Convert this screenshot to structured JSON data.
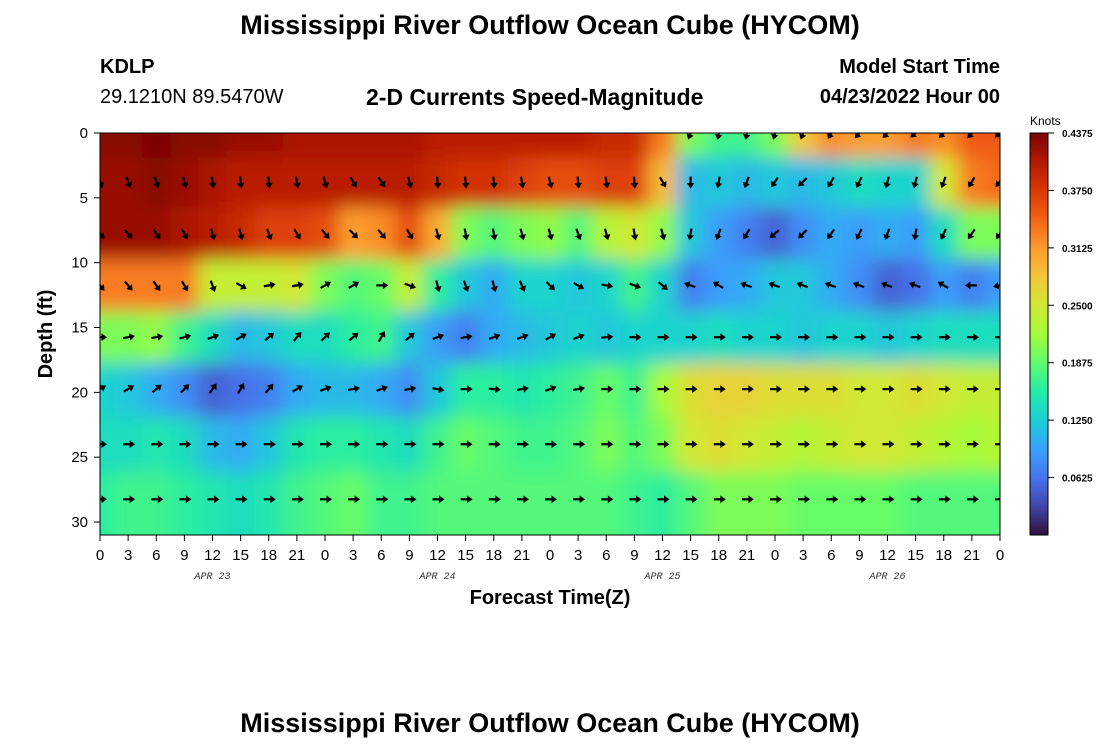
{
  "page": {
    "title_top": "Mississippi River Outflow Ocean Cube (HYCOM)",
    "title_bottom": "Mississippi River Outflow Ocean Cube (HYCOM)",
    "station": "KDLP",
    "coordinates": "29.1210N  89.5470W",
    "subtitle": "2-D Currents Speed-Magnitude",
    "model_start_label": "Model Start Time",
    "model_start_value": "04/23/2022 Hour 00"
  },
  "chart_data": {
    "type": "heatmap",
    "xlabel": "Forecast Time(Z)",
    "ylabel": "Depth (ft)",
    "x_tick_labels": [
      "0",
      "3",
      "6",
      "9",
      "12",
      "15",
      "18",
      "21",
      "0",
      "3",
      "6",
      "9",
      "12",
      "15",
      "18",
      "21",
      "0",
      "3",
      "6",
      "9",
      "12",
      "15",
      "18",
      "21",
      "0",
      "3",
      "6",
      "9",
      "12",
      "15",
      "18",
      "21",
      "0"
    ],
    "x_date_labels": [
      "APR 23",
      "APR 24",
      "APR 25",
      "APR 26"
    ],
    "x_date_positions_hours": [
      12,
      36,
      60,
      84
    ],
    "x_range_hours": [
      0,
      96
    ],
    "y_ticks": [
      0,
      5,
      10,
      15,
      20,
      25,
      30
    ],
    "y_range_ft": [
      0,
      31
    ],
    "colorbar": {
      "unit": "Knots",
      "min": 0.0,
      "max": 0.4375,
      "tick_values": [
        0.0625,
        0.125,
        0.1875,
        0.25,
        0.3125,
        0.375,
        0.4375
      ],
      "tick_labels": [
        "0.0625",
        "0.1250",
        "0.1875",
        "0.2500",
        "0.3125",
        "0.3750",
        "0.4375"
      ],
      "colormap": [
        "#30123b",
        "#4145ab",
        "#4675ed",
        "#39a2fc",
        "#1bcfd4",
        "#24eca6",
        "#61fc6c",
        "#a4fc3b",
        "#d1e834",
        "#f3c63a",
        "#fe9b2d",
        "#f36315",
        "#d93806",
        "#b11901",
        "#7a0402"
      ]
    },
    "rows_depth_ft": [
      0,
      3.75,
      7.75,
      11.75,
      15.75,
      19.75,
      24,
      28.25
    ],
    "cols_hours": [
      0,
      3,
      6,
      9,
      12,
      15,
      18,
      21,
      24,
      27,
      30,
      33,
      36,
      39,
      42,
      45,
      48,
      51,
      54,
      57,
      60,
      63,
      66,
      69,
      72,
      75,
      78,
      81,
      84,
      87,
      90,
      93,
      96
    ],
    "speed_knots": [
      [
        0.43,
        0.43,
        0.44,
        0.43,
        0.43,
        0.42,
        0.42,
        0.41,
        0.41,
        0.41,
        0.41,
        0.41,
        0.4,
        0.4,
        0.4,
        0.4,
        0.4,
        0.4,
        0.39,
        0.39,
        0.33,
        0.2,
        0.17,
        0.17,
        0.2,
        0.28,
        0.32,
        0.31,
        0.31,
        0.33,
        0.32,
        0.35,
        0.35
      ],
      [
        0.42,
        0.42,
        0.43,
        0.42,
        0.41,
        0.4,
        0.4,
        0.4,
        0.4,
        0.4,
        0.4,
        0.4,
        0.39,
        0.38,
        0.38,
        0.37,
        0.36,
        0.36,
        0.37,
        0.37,
        0.29,
        0.11,
        0.12,
        0.11,
        0.12,
        0.11,
        0.12,
        0.14,
        0.13,
        0.13,
        0.25,
        0.33,
        0.34
      ],
      [
        0.42,
        0.42,
        0.42,
        0.41,
        0.4,
        0.39,
        0.37,
        0.37,
        0.36,
        0.31,
        0.32,
        0.36,
        0.3,
        0.2,
        0.18,
        0.2,
        0.21,
        0.18,
        0.23,
        0.25,
        0.21,
        0.12,
        0.09,
        0.07,
        0.05,
        0.08,
        0.1,
        0.09,
        0.1,
        0.09,
        0.14,
        0.2,
        0.2
      ],
      [
        0.33,
        0.33,
        0.33,
        0.33,
        0.24,
        0.24,
        0.24,
        0.25,
        0.2,
        0.18,
        0.19,
        0.24,
        0.16,
        0.12,
        0.1,
        0.13,
        0.13,
        0.12,
        0.13,
        0.17,
        0.13,
        0.07,
        0.09,
        0.1,
        0.12,
        0.12,
        0.1,
        0.08,
        0.05,
        0.06,
        0.09,
        0.07,
        0.09
      ],
      [
        0.2,
        0.2,
        0.21,
        0.17,
        0.14,
        0.11,
        0.12,
        0.14,
        0.14,
        0.16,
        0.17,
        0.12,
        0.09,
        0.07,
        0.1,
        0.11,
        0.12,
        0.13,
        0.12,
        0.13,
        0.13,
        0.13,
        0.14,
        0.13,
        0.13,
        0.12,
        0.13,
        0.13,
        0.12,
        0.13,
        0.14,
        0.14,
        0.14
      ],
      [
        0.13,
        0.12,
        0.1,
        0.08,
        0.05,
        0.06,
        0.07,
        0.1,
        0.11,
        0.11,
        0.1,
        0.08,
        0.12,
        0.16,
        0.16,
        0.15,
        0.16,
        0.17,
        0.19,
        0.17,
        0.22,
        0.26,
        0.27,
        0.27,
        0.26,
        0.26,
        0.26,
        0.25,
        0.25,
        0.26,
        0.25,
        0.24,
        0.24
      ],
      [
        0.14,
        0.14,
        0.15,
        0.14,
        0.11,
        0.1,
        0.12,
        0.15,
        0.16,
        0.16,
        0.15,
        0.14,
        0.17,
        0.19,
        0.18,
        0.17,
        0.17,
        0.18,
        0.2,
        0.18,
        0.2,
        0.25,
        0.26,
        0.25,
        0.24,
        0.23,
        0.24,
        0.25,
        0.25,
        0.24,
        0.23,
        0.22,
        0.23
      ],
      [
        0.16,
        0.17,
        0.17,
        0.16,
        0.15,
        0.14,
        0.15,
        0.17,
        0.18,
        0.19,
        0.17,
        0.17,
        0.18,
        0.18,
        0.18,
        0.18,
        0.18,
        0.18,
        0.18,
        0.17,
        0.16,
        0.18,
        0.2,
        0.2,
        0.2,
        0.19,
        0.19,
        0.19,
        0.19,
        0.18,
        0.18,
        0.18,
        0.18
      ]
    ],
    "arrow_direction_deg": [
      [
        null,
        null,
        null,
        null,
        null,
        null,
        null,
        null,
        null,
        null,
        null,
        null,
        null,
        null,
        null,
        null,
        null,
        null,
        null,
        null,
        null,
        200,
        190,
        190,
        195,
        200,
        210,
        220,
        225,
        230,
        225,
        220,
        230
      ],
      [
        160,
        160,
        160,
        165,
        170,
        175,
        175,
        170,
        165,
        150,
        145,
        165,
        175,
        175,
        175,
        170,
        165,
        175,
        170,
        175,
        150,
        180,
        190,
        200,
        215,
        225,
        210,
        205,
        195,
        195,
        200,
        210,
        220
      ],
      [
        140,
        140,
        145,
        150,
        165,
        165,
        160,
        150,
        140,
        135,
        140,
        150,
        165,
        170,
        170,
        165,
        165,
        160,
        165,
        170,
        165,
        190,
        200,
        210,
        230,
        225,
        215,
        205,
        200,
        190,
        205,
        215,
        215
      ],
      [
        140,
        140,
        145,
        150,
        160,
        120,
        80,
        80,
        60,
        60,
        90,
        110,
        165,
        160,
        165,
        155,
        135,
        120,
        100,
        110,
        130,
        290,
        300,
        290,
        290,
        290,
        290,
        290,
        290,
        290,
        300,
        270,
        260
      ],
      [
        90,
        80,
        80,
        75,
        70,
        60,
        50,
        40,
        45,
        50,
        30,
        50,
        70,
        80,
        70,
        70,
        60,
        70,
        85,
        90,
        90,
        90,
        90,
        90,
        90,
        90,
        90,
        90,
        90,
        90,
        90,
        90,
        90
      ],
      [
        60,
        60,
        50,
        45,
        35,
        30,
        40,
        60,
        70,
        80,
        70,
        80,
        100,
        90,
        95,
        80,
        70,
        80,
        90,
        90,
        90,
        90,
        90,
        90,
        90,
        90,
        90,
        90,
        90,
        90,
        90,
        90,
        90
      ],
      [
        90,
        90,
        90,
        90,
        90,
        90,
        90,
        90,
        90,
        90,
        90,
        90,
        90,
        90,
        90,
        90,
        90,
        90,
        90,
        90,
        90,
        90,
        90,
        90,
        90,
        90,
        90,
        90,
        90,
        90,
        90,
        90,
        90
      ],
      [
        90,
        90,
        90,
        90,
        90,
        90,
        90,
        90,
        90,
        90,
        90,
        90,
        90,
        90,
        90,
        90,
        90,
        90,
        90,
        90,
        90,
        90,
        90,
        90,
        90,
        90,
        90,
        90,
        90,
        90,
        90,
        90,
        90
      ]
    ]
  }
}
